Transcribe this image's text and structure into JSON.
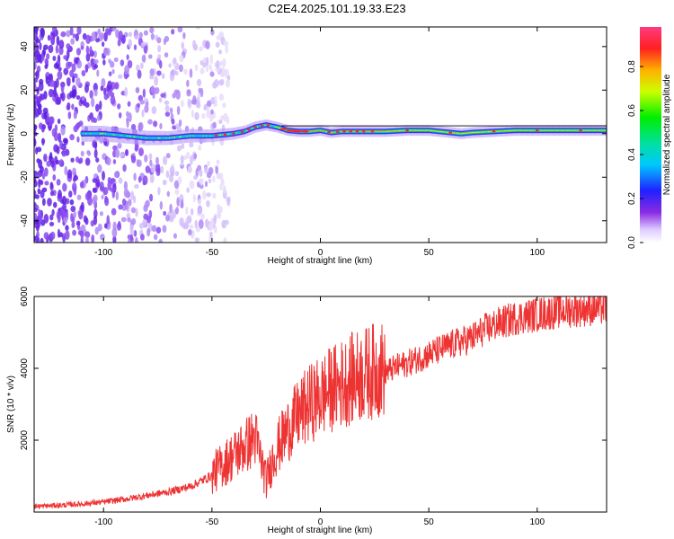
{
  "title": "C2E4.2025.101.19.33.E23",
  "chart_data": [
    {
      "type": "heatmap",
      "xlabel": "Height of straight line (km)",
      "ylabel": "Frequency (Hz)",
      "xlim": [
        -132,
        132
      ],
      "ylim": [
        -50,
        49
      ],
      "xticks": [
        -100,
        -50,
        0,
        50,
        100
      ],
      "yticks": [
        -40,
        -20,
        0,
        20,
        40
      ],
      "ridge": {
        "x": [
          -100,
          -90,
          -80,
          -70,
          -60,
          -50,
          -40,
          -35,
          -30,
          -25,
          -20,
          -15,
          -10,
          -5,
          0,
          5,
          10,
          15,
          20,
          30,
          40,
          50,
          60,
          65,
          70,
          80,
          90,
          100,
          110,
          120,
          132
        ],
        "freq": [
          0,
          -1,
          -2,
          -2,
          -1,
          -1,
          0,
          1,
          3,
          4,
          3,
          1.5,
          1,
          1,
          1.5,
          0.5,
          1,
          1,
          1,
          1,
          1.5,
          1.5,
          0.5,
          0,
          0.5,
          1,
          1.5,
          1.5,
          1.5,
          1.5,
          1.5
        ]
      },
      "colorbar": {
        "label": "Normalized spectral amplitude",
        "range": [
          0,
          0.98
        ],
        "ticks": [
          "0.0",
          "0.2",
          "0.4",
          "0.6",
          "0.8"
        ]
      }
    },
    {
      "type": "line",
      "xlabel": "Height of straight line (km)",
      "ylabel": "SNR (10 * v/v)",
      "xlim": [
        -132,
        132
      ],
      "ylim": [
        0,
        6000
      ],
      "xticks": [
        -100,
        -50,
        0,
        50,
        100
      ],
      "yticks": [
        2000,
        4000,
        6000
      ],
      "series": [
        {
          "color": "#ee3333",
          "x": [
            -132,
            -120,
            -110,
            -100,
            -90,
            -80,
            -70,
            -60,
            -55,
            -50,
            -45,
            -40,
            -35,
            -30,
            -27,
            -25,
            -22,
            -20,
            -15,
            -10,
            -5,
            0,
            5,
            10,
            15,
            20,
            25,
            30,
            35,
            40,
            50,
            60,
            70,
            75,
            80,
            90,
            100,
            110,
            120,
            132
          ],
          "y": [
            150,
            180,
            220,
            270,
            350,
            450,
            550,
            700,
            850,
            1000,
            1250,
            1500,
            1750,
            2000,
            1300,
            800,
            1400,
            1700,
            2200,
            2600,
            2900,
            3100,
            3300,
            3450,
            3600,
            3700,
            3800,
            3850,
            4000,
            4100,
            4350,
            4600,
            4800,
            5000,
            5150,
            5350,
            5450,
            5550,
            5600,
            5650
          ]
        }
      ]
    }
  ]
}
